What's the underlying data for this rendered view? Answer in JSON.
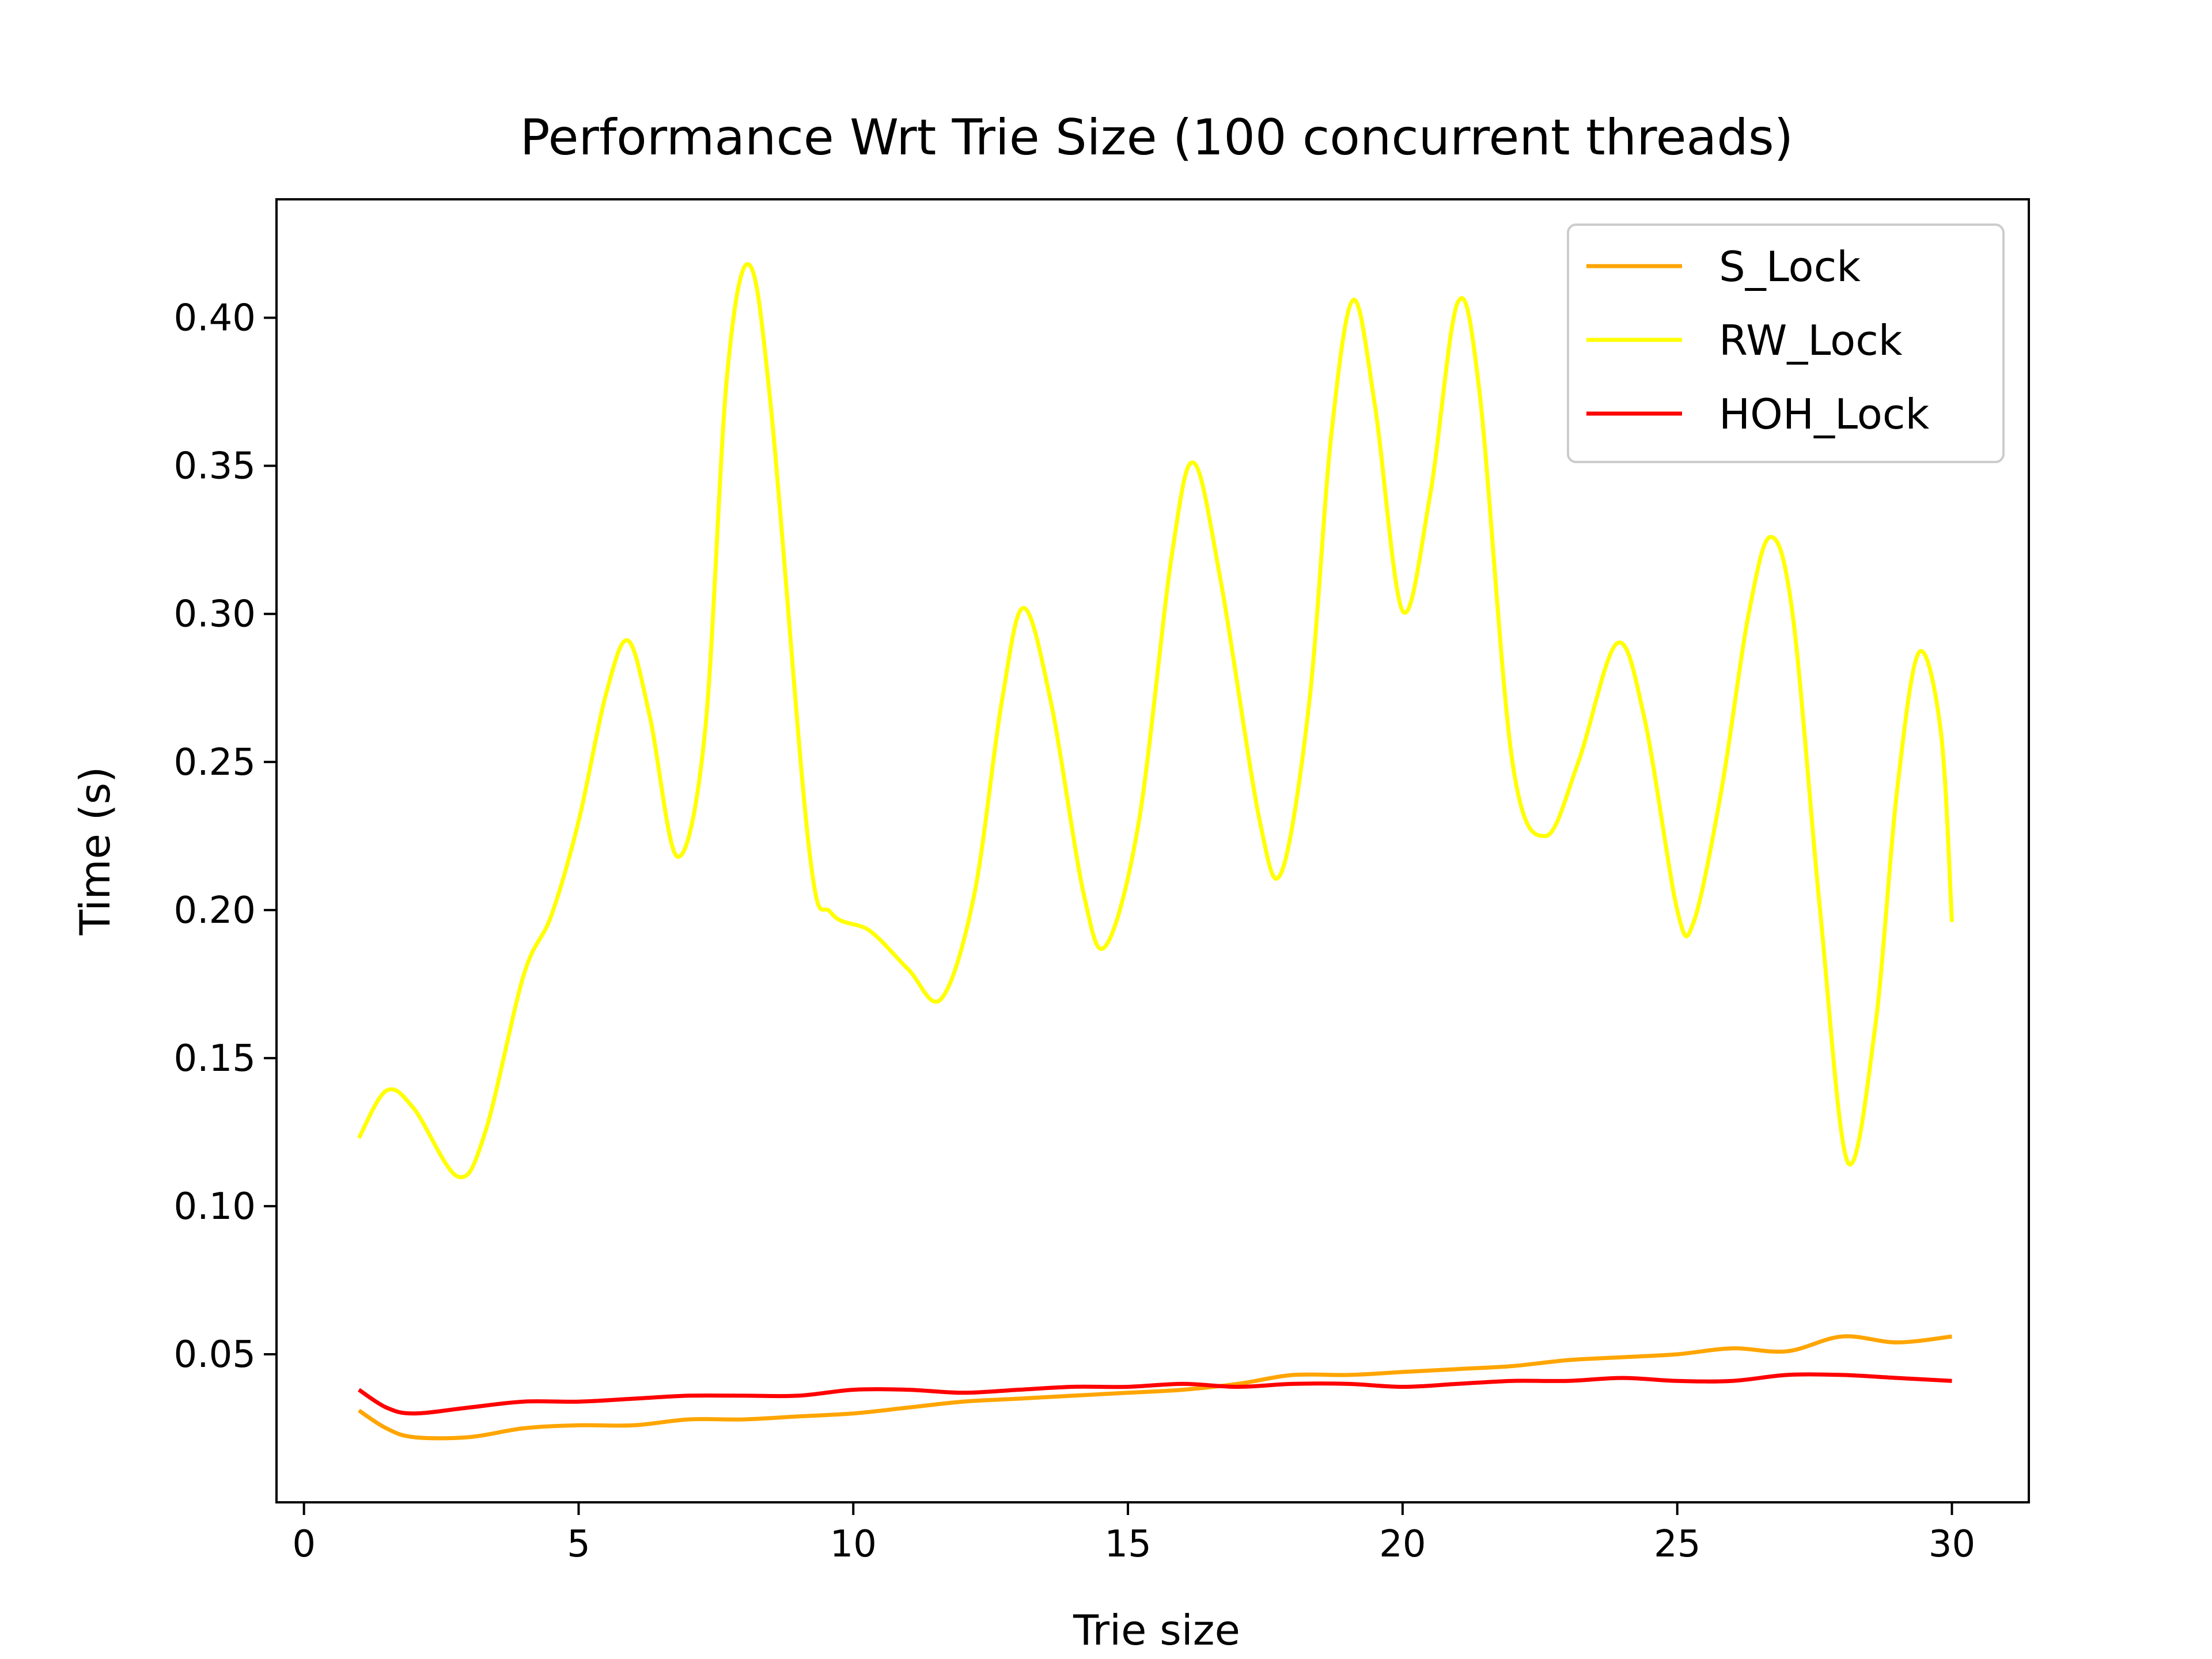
{
  "chart_data": {
    "type": "line",
    "title": "Performance Wrt Trie Size (100 concurrent threads)",
    "xlabel": "Trie size",
    "ylabel": "Time (s)",
    "xlim": [
      -0.5,
      31.4
    ],
    "ylim": [
      0.0,
      0.44
    ],
    "xticks": [
      0,
      5,
      10,
      15,
      20,
      25,
      30
    ],
    "xtick_labels": [
      "0",
      "5",
      "10",
      "15",
      "20",
      "25",
      "30"
    ],
    "yticks": [
      0.05,
      0.1,
      0.15,
      0.2,
      0.25,
      0.3,
      0.35,
      0.4
    ],
    "ytick_labels": [
      "0.05",
      "0.10",
      "0.15",
      "0.20",
      "0.25",
      "0.30",
      "0.35",
      "0.40"
    ],
    "grid": false,
    "legend_position": "top-right",
    "series": [
      {
        "name": "S_Lock",
        "color": "#ffa500",
        "points": [
          [
            1,
            0.031
          ],
          [
            1.5,
            0.025
          ],
          [
            2,
            0.022
          ],
          [
            3,
            0.022
          ],
          [
            4,
            0.025
          ],
          [
            5,
            0.026
          ],
          [
            6,
            0.026
          ],
          [
            7,
            0.028
          ],
          [
            8,
            0.028
          ],
          [
            9,
            0.029
          ],
          [
            10,
            0.03
          ],
          [
            11,
            0.032
          ],
          [
            12,
            0.034
          ],
          [
            13,
            0.035
          ],
          [
            14,
            0.036
          ],
          [
            15,
            0.037
          ],
          [
            16,
            0.038
          ],
          [
            17,
            0.04
          ],
          [
            18,
            0.043
          ],
          [
            19,
            0.043
          ],
          [
            20,
            0.044
          ],
          [
            21,
            0.045
          ],
          [
            22,
            0.046
          ],
          [
            23,
            0.048
          ],
          [
            24,
            0.049
          ],
          [
            25,
            0.05
          ],
          [
            26,
            0.052
          ],
          [
            27,
            0.051
          ],
          [
            28,
            0.056
          ],
          [
            29,
            0.054
          ],
          [
            30,
            0.056
          ]
        ]
      },
      {
        "name": "RW_Lock",
        "color": "#ffff00",
        "points": [
          [
            1,
            0.123
          ],
          [
            1.5,
            0.139
          ],
          [
            2,
            0.133
          ],
          [
            2.8,
            0.11
          ],
          [
            3.3,
            0.125
          ],
          [
            4,
            0.178
          ],
          [
            4.5,
            0.198
          ],
          [
            5,
            0.23
          ],
          [
            5.5,
            0.273
          ],
          [
            5.9,
            0.291
          ],
          [
            6.3,
            0.265
          ],
          [
            6.8,
            0.218
          ],
          [
            7.3,
            0.26
          ],
          [
            7.7,
            0.38
          ],
          [
            8.1,
            0.418
          ],
          [
            8.5,
            0.37
          ],
          [
            9.2,
            0.22
          ],
          [
            9.6,
            0.199
          ],
          [
            10.3,
            0.193
          ],
          [
            11,
            0.18
          ],
          [
            11.6,
            0.17
          ],
          [
            12.2,
            0.205
          ],
          [
            12.7,
            0.27
          ],
          [
            13.1,
            0.302
          ],
          [
            13.6,
            0.27
          ],
          [
            14.2,
            0.205
          ],
          [
            14.6,
            0.188
          ],
          [
            15.2,
            0.23
          ],
          [
            15.8,
            0.32
          ],
          [
            16.2,
            0.351
          ],
          [
            16.7,
            0.31
          ],
          [
            17.4,
            0.23
          ],
          [
            17.8,
            0.213
          ],
          [
            18.3,
            0.27
          ],
          [
            18.7,
            0.36
          ],
          [
            19.1,
            0.406
          ],
          [
            19.5,
            0.37
          ],
          [
            20,
            0.301
          ],
          [
            20.5,
            0.34
          ],
          [
            21,
            0.405
          ],
          [
            21.4,
            0.375
          ],
          [
            22,
            0.25
          ],
          [
            22.6,
            0.225
          ],
          [
            23.2,
            0.25
          ],
          [
            23.9,
            0.29
          ],
          [
            24.4,
            0.265
          ],
          [
            25,
            0.2
          ],
          [
            25.3,
            0.196
          ],
          [
            25.8,
            0.24
          ],
          [
            26.3,
            0.3
          ],
          [
            26.7,
            0.326
          ],
          [
            27.1,
            0.3
          ],
          [
            27.6,
            0.2
          ],
          [
            28.1,
            0.115
          ],
          [
            28.6,
            0.16
          ],
          [
            29,
            0.24
          ],
          [
            29.4,
            0.287
          ],
          [
            29.8,
            0.26
          ],
          [
            30,
            0.196
          ]
        ]
      },
      {
        "name": "HOH_Lock",
        "color": "#ff0000",
        "points": [
          [
            1,
            0.038
          ],
          [
            1.5,
            0.032
          ],
          [
            2,
            0.03
          ],
          [
            3,
            0.032
          ],
          [
            4,
            0.034
          ],
          [
            5,
            0.034
          ],
          [
            6,
            0.035
          ],
          [
            7,
            0.036
          ],
          [
            8,
            0.036
          ],
          [
            9,
            0.036
          ],
          [
            10,
            0.038
          ],
          [
            11,
            0.038
          ],
          [
            12,
            0.037
          ],
          [
            13,
            0.038
          ],
          [
            14,
            0.039
          ],
          [
            15,
            0.039
          ],
          [
            16,
            0.04
          ],
          [
            17,
            0.039
          ],
          [
            18,
            0.04
          ],
          [
            19,
            0.04
          ],
          [
            20,
            0.039
          ],
          [
            21,
            0.04
          ],
          [
            22,
            0.041
          ],
          [
            23,
            0.041
          ],
          [
            24,
            0.042
          ],
          [
            25,
            0.041
          ],
          [
            26,
            0.041
          ],
          [
            27,
            0.043
          ],
          [
            28,
            0.043
          ],
          [
            29,
            0.042
          ],
          [
            30,
            0.041
          ]
        ]
      }
    ]
  }
}
